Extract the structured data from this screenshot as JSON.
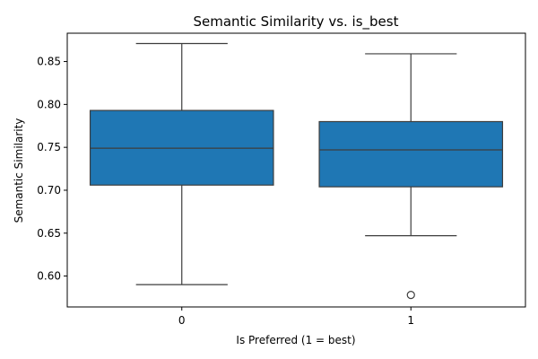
{
  "chart_data": {
    "type": "box",
    "title": "Semantic Similarity vs. is_best",
    "xlabel": "Is Preferred (1 = best)",
    "ylabel": "Semantic Similarity",
    "categories": [
      "0",
      "1"
    ],
    "ylim": [
      0.564,
      0.883
    ],
    "yticks": [
      "0.60",
      "0.65",
      "0.70",
      "0.75",
      "0.80",
      "0.85"
    ],
    "grid": false,
    "box_color": "#1f77b4",
    "boxes": [
      {
        "category": "0",
        "whisker_low": 0.59,
        "q1": 0.706,
        "median": 0.749,
        "q3": 0.793,
        "whisker_high": 0.871,
        "outliers": []
      },
      {
        "category": "1",
        "whisker_low": 0.647,
        "q1": 0.704,
        "median": 0.747,
        "q3": 0.78,
        "whisker_high": 0.859,
        "outliers": [
          0.578
        ]
      }
    ]
  }
}
